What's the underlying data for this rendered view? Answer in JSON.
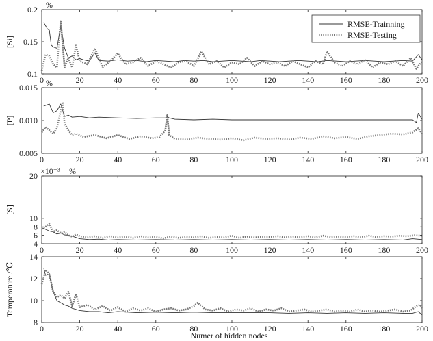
{
  "figure": {
    "xlabel": "Numer of hidden nodes"
  },
  "legend": {
    "entries": [
      {
        "label": "RMSE-Trainning",
        "style": "solid",
        "color": "#333333"
      },
      {
        "label": "RMSE-Testing",
        "style": "dotted",
        "color": "#777777"
      }
    ]
  },
  "chart_data": [
    {
      "type": "line",
      "ylabel": "[Si]",
      "unit": "%",
      "multiplier": "",
      "xlim": [
        0,
        200
      ],
      "ylim": [
        0.1,
        0.2
      ],
      "xticks": [
        0,
        20,
        40,
        60,
        80,
        100,
        120,
        140,
        160,
        180,
        200
      ],
      "yticks": [
        0.1,
        0.15,
        0.2
      ],
      "ytick_labels": [
        "0.1",
        "0.15",
        "0.2"
      ],
      "legend": "top-right",
      "series": [
        {
          "name": "RMSE-Trainning",
          "style": "solid",
          "x": [
            1,
            2,
            3,
            4,
            5,
            6,
            8,
            10,
            12,
            14,
            16,
            18,
            20,
            22,
            25,
            28,
            30,
            35,
            40,
            45,
            50,
            55,
            60,
            65,
            70,
            75,
            80,
            85,
            90,
            95,
            100,
            105,
            110,
            115,
            120,
            125,
            130,
            135,
            140,
            145,
            150,
            155,
            160,
            165,
            170,
            175,
            180,
            185,
            190,
            195,
            198,
            200
          ],
          "values": [
            0.18,
            0.175,
            0.17,
            0.168,
            0.145,
            0.142,
            0.14,
            0.175,
            0.14,
            0.125,
            0.128,
            0.122,
            0.124,
            0.122,
            0.12,
            0.133,
            0.121,
            0.12,
            0.122,
            0.12,
            0.121,
            0.119,
            0.121,
            0.12,
            0.119,
            0.121,
            0.12,
            0.121,
            0.119,
            0.12,
            0.121,
            0.12,
            0.119,
            0.121,
            0.12,
            0.119,
            0.12,
            0.121,
            0.12,
            0.119,
            0.121,
            0.12,
            0.119,
            0.12,
            0.121,
            0.12,
            0.119,
            0.12,
            0.121,
            0.12,
            0.13,
            0.122
          ]
        },
        {
          "name": "RMSE-Testing",
          "style": "dotted",
          "x": [
            0,
            2,
            4,
            6,
            8,
            9,
            10,
            12,
            14,
            16,
            18,
            20,
            24,
            28,
            32,
            36,
            40,
            44,
            48,
            52,
            56,
            60,
            64,
            68,
            72,
            76,
            80,
            84,
            88,
            92,
            96,
            100,
            104,
            108,
            112,
            116,
            120,
            124,
            128,
            132,
            136,
            140,
            144,
            148,
            150,
            154,
            158,
            162,
            166,
            170,
            174,
            178,
            182,
            186,
            190,
            194,
            197,
            200
          ],
          "values": [
            0.105,
            0.13,
            0.128,
            0.115,
            0.11,
            0.15,
            0.182,
            0.11,
            0.125,
            0.11,
            0.145,
            0.12,
            0.115,
            0.14,
            0.11,
            0.12,
            0.132,
            0.115,
            0.118,
            0.125,
            0.112,
            0.12,
            0.115,
            0.11,
            0.118,
            0.12,
            0.112,
            0.135,
            0.115,
            0.12,
            0.11,
            0.118,
            0.115,
            0.125,
            0.112,
            0.12,
            0.115,
            0.118,
            0.112,
            0.12,
            0.115,
            0.11,
            0.12,
            0.115,
            0.135,
            0.118,
            0.112,
            0.12,
            0.115,
            0.122,
            0.11,
            0.118,
            0.115,
            0.12,
            0.112,
            0.125,
            0.108,
            0.12
          ]
        }
      ]
    },
    {
      "type": "line",
      "ylabel": "[P]",
      "unit": "%",
      "multiplier": "",
      "xlim": [
        0,
        200
      ],
      "ylim": [
        0.005,
        0.015
      ],
      "xticks": [
        0,
        20,
        40,
        60,
        80,
        100,
        120,
        140,
        160,
        180,
        200
      ],
      "yticks": [
        0.005,
        0.01,
        0.015
      ],
      "ytick_labels": [
        "0.005",
        "0.010",
        "0.015"
      ],
      "series": [
        {
          "name": "RMSE-Trainning",
          "style": "solid",
          "x": [
            1,
            2,
            4,
            6,
            8,
            10,
            12,
            14,
            16,
            20,
            25,
            30,
            40,
            50,
            60,
            65,
            66,
            67,
            70,
            80,
            90,
            100,
            110,
            120,
            130,
            140,
            150,
            160,
            170,
            180,
            190,
            195,
            197,
            198,
            200
          ],
          "values": [
            0.0122,
            0.0123,
            0.0125,
            0.0112,
            0.0115,
            0.0125,
            0.0106,
            0.0108,
            0.0105,
            0.0106,
            0.0104,
            0.0105,
            0.0104,
            0.0103,
            0.0104,
            0.0104,
            0.0106,
            0.0104,
            0.0102,
            0.0101,
            0.0102,
            0.0101,
            0.0101,
            0.0101,
            0.0101,
            0.0101,
            0.0101,
            0.0101,
            0.0101,
            0.0101,
            0.0101,
            0.0101,
            0.0097,
            0.0111,
            0.0102
          ]
        },
        {
          "name": "RMSE-Testing",
          "style": "dotted",
          "x": [
            0,
            2,
            4,
            6,
            8,
            10,
            11,
            12,
            14,
            16,
            18,
            22,
            28,
            34,
            40,
            46,
            52,
            58,
            62,
            65,
            66,
            67,
            70,
            76,
            82,
            88,
            94,
            100,
            106,
            112,
            118,
            124,
            130,
            136,
            142,
            148,
            154,
            160,
            166,
            172,
            178,
            184,
            190,
            195,
            198,
            200
          ],
          "values": [
            0.0082,
            0.009,
            0.0085,
            0.008,
            0.0088,
            0.0115,
            0.0128,
            0.0095,
            0.0085,
            0.0078,
            0.008,
            0.0075,
            0.0078,
            0.0073,
            0.0078,
            0.0072,
            0.0076,
            0.0073,
            0.0075,
            0.0085,
            0.0108,
            0.0078,
            0.0072,
            0.0071,
            0.0074,
            0.0072,
            0.0071,
            0.0073,
            0.007,
            0.0074,
            0.0072,
            0.0073,
            0.0071,
            0.0074,
            0.0072,
            0.0076,
            0.0073,
            0.0075,
            0.0072,
            0.0076,
            0.0078,
            0.008,
            0.0079,
            0.0082,
            0.0088,
            0.008
          ]
        }
      ]
    },
    {
      "type": "line",
      "ylabel": "[S]",
      "unit": "%",
      "multiplier": "×10⁻³",
      "xlim": [
        0,
        200
      ],
      "ylim": [
        4,
        20
      ],
      "xticks": [
        0,
        20,
        40,
        60,
        80,
        100,
        120,
        140,
        160,
        180,
        200
      ],
      "yticks": [
        4,
        6,
        8,
        10,
        20
      ],
      "ytick_labels": [
        "4",
        "6",
        "8",
        "10",
        "20"
      ],
      "series": [
        {
          "name": "RMSE-Trainning",
          "style": "solid",
          "x": [
            0,
            2,
            4,
            6,
            8,
            10,
            12,
            14,
            16,
            18,
            20,
            25,
            30,
            35,
            40,
            50,
            60,
            70,
            80,
            90,
            100,
            110,
            120,
            130,
            140,
            150,
            160,
            170,
            180,
            190,
            195,
            200
          ],
          "values": [
            7.8,
            7.4,
            7.0,
            6.8,
            6.3,
            6.5,
            6.1,
            6.0,
            5.8,
            5.5,
            5.2,
            5.0,
            5.1,
            4.9,
            5.0,
            4.9,
            5.0,
            4.9,
            5.0,
            4.9,
            5.0,
            4.9,
            5.0,
            4.9,
            5.0,
            4.9,
            5.0,
            4.9,
            5.0,
            4.9,
            5.2,
            5.0
          ]
        },
        {
          "name": "RMSE-Testing",
          "style": "dotted",
          "x": [
            0,
            2,
            4,
            6,
            8,
            10,
            12,
            14,
            16,
            18,
            20,
            24,
            28,
            32,
            36,
            40,
            44,
            48,
            52,
            56,
            60,
            64,
            68,
            72,
            76,
            80,
            84,
            88,
            92,
            96,
            100,
            104,
            108,
            112,
            116,
            120,
            124,
            128,
            132,
            136,
            140,
            144,
            148,
            152,
            156,
            160,
            164,
            168,
            172,
            176,
            180,
            184,
            188,
            192,
            196,
            200
          ],
          "values": [
            7.5,
            8.0,
            8.8,
            6.8,
            7.2,
            6.5,
            6.8,
            6.0,
            5.7,
            6.2,
            5.8,
            5.5,
            5.8,
            5.4,
            5.8,
            5.5,
            5.7,
            5.4,
            5.8,
            5.5,
            5.6,
            5.3,
            5.7,
            5.4,
            5.6,
            5.5,
            5.8,
            5.4,
            5.6,
            5.5,
            5.9,
            5.4,
            5.7,
            5.5,
            5.6,
            5.6,
            5.8,
            5.5,
            5.7,
            5.6,
            5.8,
            5.5,
            5.9,
            5.6,
            5.7,
            5.6,
            5.8,
            5.5,
            5.9,
            5.6,
            5.8,
            5.7,
            5.9,
            5.8,
            6.0,
            5.9
          ]
        }
      ]
    },
    {
      "type": "line",
      "ylabel": "Temperature /℃",
      "unit": "",
      "multiplier": "",
      "xlim": [
        0,
        200
      ],
      "ylim": [
        8,
        14
      ],
      "xticks": [
        0,
        20,
        40,
        60,
        80,
        100,
        120,
        140,
        160,
        180,
        200
      ],
      "yticks": [
        8,
        10,
        12,
        14
      ],
      "ytick_labels": [
        "8",
        "10",
        "12",
        "14"
      ],
      "series": [
        {
          "name": "RMSE-Trainning",
          "style": "solid",
          "x": [
            1,
            2,
            3,
            4,
            6,
            8,
            10,
            12,
            14,
            16,
            18,
            20,
            25,
            30,
            35,
            40,
            50,
            60,
            70,
            80,
            90,
            100,
            110,
            120,
            130,
            140,
            150,
            160,
            170,
            180,
            190,
            195,
            198,
            200
          ],
          "values": [
            13.0,
            12.3,
            12.4,
            12.3,
            10.8,
            10.0,
            9.8,
            9.6,
            9.5,
            9.3,
            9.2,
            9.1,
            9.0,
            9.0,
            8.9,
            9.0,
            8.9,
            8.95,
            8.9,
            8.95,
            8.9,
            8.9,
            8.9,
            8.9,
            8.85,
            8.9,
            8.85,
            8.9,
            8.85,
            8.9,
            8.85,
            8.85,
            9.0,
            8.7
          ]
        },
        {
          "name": "RMSE-Testing",
          "style": "dotted",
          "x": [
            0,
            2,
            4,
            6,
            8,
            10,
            12,
            14,
            16,
            18,
            20,
            24,
            28,
            32,
            36,
            40,
            44,
            48,
            52,
            56,
            60,
            64,
            68,
            72,
            76,
            80,
            82,
            86,
            90,
            94,
            98,
            102,
            106,
            110,
            114,
            118,
            122,
            126,
            130,
            134,
            138,
            142,
            146,
            150,
            154,
            158,
            162,
            166,
            170,
            174,
            178,
            182,
            186,
            190,
            194,
            197,
            199,
            200
          ],
          "values": [
            11.5,
            12.8,
            12.4,
            10.8,
            10.3,
            10.5,
            10.2,
            10.8,
            9.5,
            10.6,
            9.4,
            9.6,
            9.2,
            9.5,
            9.1,
            9.4,
            9.0,
            9.3,
            9.1,
            9.3,
            9.0,
            9.2,
            9.3,
            9.1,
            9.2,
            9.5,
            9.8,
            9.2,
            9.1,
            9.3,
            9.0,
            9.2,
            9.1,
            9.3,
            9.0,
            9.2,
            9.1,
            9.3,
            9.0,
            9.1,
            9.2,
            9.0,
            9.1,
            9.2,
            9.0,
            9.1,
            9.0,
            9.2,
            9.0,
            9.1,
            9.0,
            9.1,
            9.2,
            9.0,
            9.1,
            9.5,
            9.6,
            9.3
          ]
        }
      ]
    }
  ]
}
